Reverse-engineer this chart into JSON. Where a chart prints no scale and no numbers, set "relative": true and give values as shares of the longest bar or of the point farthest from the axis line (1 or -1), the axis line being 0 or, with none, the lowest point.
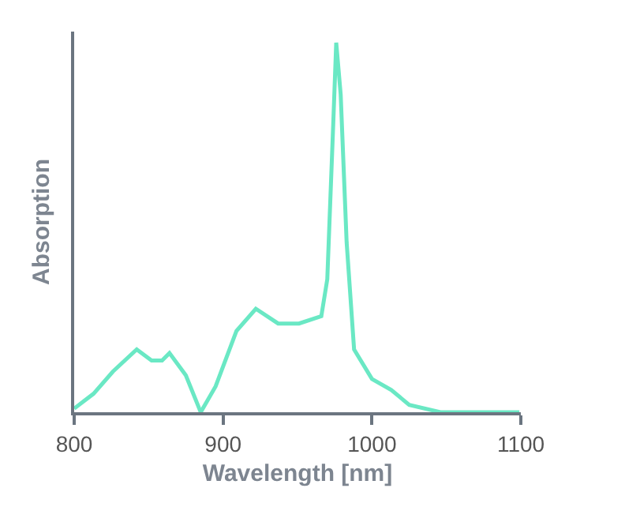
{
  "chart_data": {
    "type": "line",
    "xlabel": "Wavelength [nm]",
    "ylabel": "Absorption",
    "relative": true,
    "xlim": [
      800,
      1100
    ],
    "xticks": [
      800,
      900,
      1000,
      1100
    ],
    "grid": false,
    "marker": "none",
    "line_style": "solid",
    "series": [
      {
        "color": "#6ae8c4",
        "x": [
          800,
          813,
          826,
          842,
          852,
          859,
          864,
          875,
          885,
          895,
          909,
          922,
          937,
          951,
          966,
          970,
          974,
          976,
          979,
          983,
          988,
          1000,
          1013,
          1025,
          1046,
          1074,
          1099
        ],
        "values": [
          0.01,
          0.05,
          0.11,
          0.17,
          0.14,
          0.14,
          0.16,
          0.1,
          0.0,
          0.07,
          0.22,
          0.28,
          0.24,
          0.24,
          0.26,
          0.36,
          0.78,
          1.0,
          0.86,
          0.46,
          0.17,
          0.09,
          0.06,
          0.02,
          0.0,
          0.0,
          0.0
        ]
      }
    ]
  }
}
